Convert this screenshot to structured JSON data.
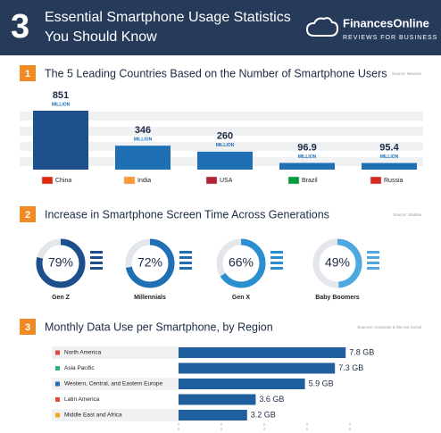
{
  "header": {
    "number": "3",
    "title_lines": [
      "Essential Smartphone Usage Statistics",
      "You Should Know"
    ],
    "brand": "FinancesOnline",
    "brand_tagline": "REVIEWS FOR BUSINESS"
  },
  "chart_data": [
    {
      "type": "bar",
      "number": "1",
      "title": "The 5 Leading Countries Based on the Number of Smartphone Users",
      "source": "Source: Newzoo",
      "categories": [
        "China",
        "India",
        "USA",
        "Brazil",
        "Russia"
      ],
      "values": [
        851,
        346,
        260,
        96.9,
        95.4
      ],
      "unit": "MILLION",
      "color": "#1f6fb5"
    },
    {
      "type": "donut",
      "number": "2",
      "title": "Increase in Smartphone Screen Time Across Generations",
      "source": "Source: Statista",
      "categories": [
        "Gen Z",
        "Millennials",
        "Gen X",
        "Baby Boomers"
      ],
      "values": [
        79,
        72,
        66,
        49
      ],
      "value_labels": [
        "79%",
        "72%",
        "66%",
        "49%"
      ],
      "total": 100,
      "colors": [
        "#1d4f8c",
        "#1f6fb5",
        "#2a8fd0",
        "#4ea8e0"
      ]
    },
    {
      "type": "barh",
      "number": "3",
      "title": "Monthly Data Use per Smartphone, by Region",
      "source": "Sources: Hootsuite & We Are Social",
      "categories": [
        "North America",
        "Asia Pacific",
        "Western, Central, and Eastern Europe",
        "Latin America",
        "Middle East and Africa"
      ],
      "values": [
        7.8,
        7.3,
        5.9,
        3.6,
        3.2
      ],
      "value_labels": [
        "7.8 GB",
        "7.3 GB",
        "5.9 GB",
        "3.6 GB",
        "3.2 GB"
      ],
      "marker_colors": [
        "#e8453c",
        "#2bb673",
        "#1f6fb5",
        "#e8453c",
        "#f7a31c"
      ],
      "color": "#1f5f9e",
      "xlim": [
        0,
        8
      ],
      "xticks": [
        0,
        2,
        4,
        6,
        8
      ]
    }
  ]
}
